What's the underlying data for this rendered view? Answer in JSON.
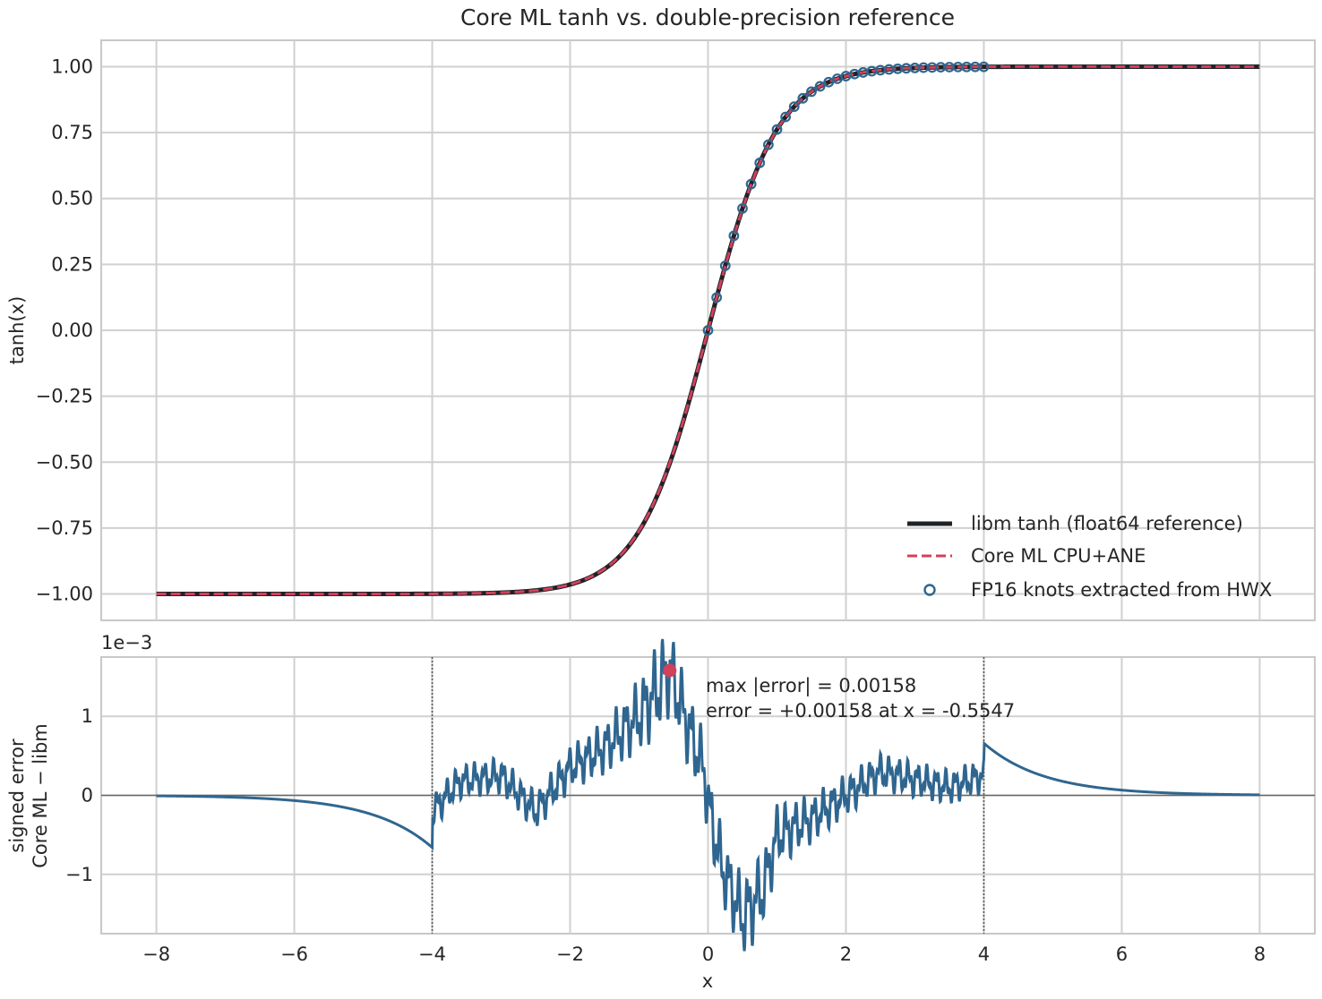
{
  "chart_data": [
    {
      "type": "line",
      "title": "Core ML tanh vs. double-precision reference",
      "xlabel": "",
      "ylabel": "tanh(x)",
      "xlim": [
        -8.8,
        8.8
      ],
      "ylim": [
        -1.1,
        1.1
      ],
      "yticks": [
        1.0,
        0.75,
        0.5,
        0.25,
        0.0,
        -0.25,
        -0.5,
        -0.75,
        -1.0
      ],
      "ytick_labels": [
        "1.00",
        "0.75",
        "0.50",
        "0.25",
        "0.00",
        "−0.25",
        "−0.50",
        "−0.75",
        "−1.00"
      ],
      "xticks": [
        -8,
        -6,
        -4,
        -2,
        0,
        2,
        4,
        6,
        8
      ],
      "grid": true,
      "legend_position": "lower-right",
      "series": [
        {
          "name": "libm tanh (float64 reference)",
          "function": "tanh(x)",
          "x_range": [
            -8,
            8
          ],
          "color": "#1f2328",
          "style": "solid"
        },
        {
          "name": "Core ML CPU+ANE",
          "function": "tanh(x) + signed error",
          "x_range": [
            -8,
            8
          ],
          "color": "#d0415a",
          "style": "dashed"
        },
        {
          "name": "FP16 knots extracted from HWX",
          "style": "markers",
          "color": "#2f6690",
          "x": [
            0,
            0.125,
            0.25,
            0.375,
            0.5,
            0.625,
            0.75,
            0.875,
            1.0,
            1.125,
            1.25,
            1.375,
            1.5,
            1.625,
            1.75,
            1.875,
            2.0,
            2.125,
            2.25,
            2.375,
            2.5,
            2.625,
            2.75,
            2.875,
            3.0,
            3.125,
            3.25,
            3.375,
            3.5,
            3.625,
            3.75,
            3.875,
            4.0
          ],
          "y": [
            0.0,
            0.1244,
            0.2449,
            0.3584,
            0.4621,
            0.5546,
            0.6351,
            0.7039,
            0.7616,
            0.8093,
            0.8483,
            0.8799,
            0.9051,
            0.9253,
            0.9414,
            0.9541,
            0.964,
            0.9719,
            0.978,
            0.9828,
            0.9866,
            0.9896,
            0.9919,
            0.9937,
            0.9951,
            0.9962,
            0.997,
            0.9977,
            0.9982,
            0.9986,
            0.9989,
            0.9991,
            0.9993
          ]
        }
      ]
    },
    {
      "type": "line",
      "title": "",
      "offset_label": "1e−3",
      "xlabel": "x",
      "ylabel_lines": [
        "signed error",
        "Core ML − libm"
      ],
      "xlim": [
        -8.8,
        8.8
      ],
      "ylim": [
        -1.75,
        1.75
      ],
      "yticks": [
        1,
        0,
        -1
      ],
      "ytick_labels": [
        "1",
        "0",
        "−1"
      ],
      "xticks": [
        -8,
        -6,
        -4,
        -2,
        0,
        2,
        4,
        6,
        8
      ],
      "xtick_labels": [
        "−8",
        "−6",
        "−4",
        "−2",
        "0",
        "2",
        "4",
        "6",
        "8"
      ],
      "grid": true,
      "vlines": [
        -4,
        4
      ],
      "hline": 0,
      "series": [
        {
          "name": "signed error (×1e−3)",
          "x_range": [
            -8,
            8
          ],
          "color": "#2f6690",
          "keypoints_x": [
            -8,
            -6,
            -5,
            -4.5,
            -4.0,
            -4.0,
            -3.6,
            -3.0,
            -2.5,
            -2.0,
            -1.5,
            -1.0,
            -0.5547,
            -0.3,
            -0.05,
            0.0,
            0.2,
            0.5,
            0.8,
            1.0,
            1.5,
            2.0,
            2.5,
            3.0,
            3.5,
            4.0,
            4.0,
            4.5,
            5.0,
            6.0,
            8.0
          ],
          "keypoints_y": [
            0,
            -0.02,
            -0.12,
            -0.3,
            -0.66,
            -0.2,
            0.18,
            0.25,
            -0.2,
            0.35,
            0.6,
            1.0,
            1.58,
            0.9,
            0.3,
            -0.1,
            -0.9,
            -1.55,
            -1.2,
            -0.5,
            -0.3,
            0.0,
            0.3,
            0.2,
            0.1,
            0.25,
            0.66,
            0.25,
            0.1,
            0.02,
            0
          ]
        }
      ],
      "annotation": {
        "marker_x": -0.5547,
        "marker_y": 1.58,
        "lines": [
          "max |error| = 0.00158",
          "error = +0.00158 at x = -0.5547"
        ]
      }
    }
  ]
}
